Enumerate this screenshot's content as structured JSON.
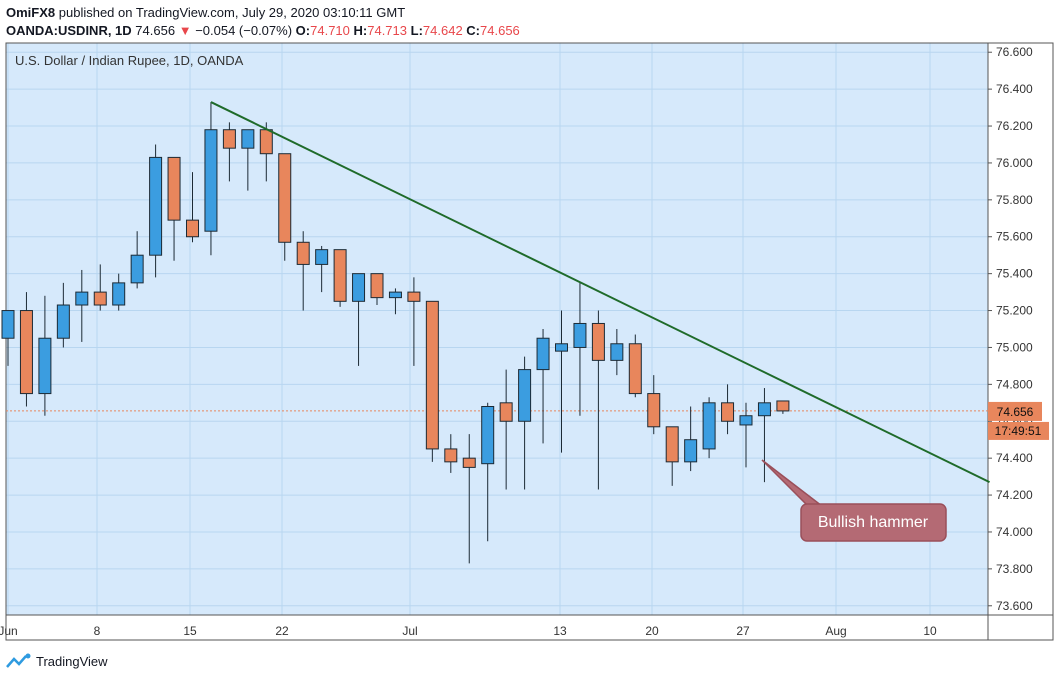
{
  "header": {
    "author": "OmiFX8",
    "published_text": "published on TradingView.com, July 29, 2020 03:10:11 GMT",
    "symbol": "OANDA:USDINR, 1D",
    "last": "74.656",
    "down_arrow": "▼",
    "change": "−0.054 (−0.07%)",
    "o_label": "O:",
    "o_value": "74.710",
    "h_label": "H:",
    "h_value": "74.713",
    "l_label": "L:",
    "l_value": "74.642",
    "c_label": "C:",
    "c_value": "74.656"
  },
  "legend_title": "U.S. Dollar / Indian Rupee, 1D, OANDA",
  "price_tag": "74.656",
  "countdown_tag": "17:49:51",
  "annotation": "Bullish hammer",
  "footer": {
    "brand": "TradingView"
  },
  "colors": {
    "up": "#3b9de0",
    "down": "#e8865c",
    "bg": "#d6e9fb",
    "trend": "#1f6b2a",
    "annotation": "#b46a74"
  },
  "chart_data": {
    "type": "candlestick",
    "ylim": [
      73.55,
      76.65
    ],
    "y_ticks": [
      "76.600",
      "76.400",
      "76.200",
      "76.000",
      "75.800",
      "75.600",
      "75.400",
      "75.200",
      "75.000",
      "74.800",
      "74.600",
      "74.400",
      "74.200",
      "74.000",
      "73.800",
      "73.600"
    ],
    "x_ticks": [
      "Jun",
      "8",
      "15",
      "22",
      "Jul",
      "13",
      "20",
      "27",
      "Aug",
      "10"
    ],
    "candles": [
      {
        "x": 0,
        "open": 75.05,
        "high": 75.2,
        "low": 74.9,
        "close": 75.2
      },
      {
        "x": 1,
        "open": 75.2,
        "high": 75.3,
        "low": 74.68,
        "close": 74.75
      },
      {
        "x": 2,
        "open": 74.75,
        "high": 75.28,
        "low": 74.63,
        "close": 75.05
      },
      {
        "x": 3,
        "open": 75.05,
        "high": 75.35,
        "low": 75.0,
        "close": 75.23
      },
      {
        "x": 4,
        "open": 75.23,
        "high": 75.42,
        "low": 75.03,
        "close": 75.3
      },
      {
        "x": 5,
        "open": 75.3,
        "high": 75.45,
        "low": 75.2,
        "close": 75.23
      },
      {
        "x": 6,
        "open": 75.23,
        "high": 75.4,
        "low": 75.2,
        "close": 75.35
      },
      {
        "x": 7,
        "open": 75.35,
        "high": 75.63,
        "low": 75.32,
        "close": 75.5
      },
      {
        "x": 8,
        "open": 75.5,
        "high": 76.1,
        "low": 75.38,
        "close": 76.03
      },
      {
        "x": 9,
        "open": 76.03,
        "high": 76.03,
        "low": 75.47,
        "close": 75.69
      },
      {
        "x": 10,
        "open": 75.69,
        "high": 75.95,
        "low": 75.57,
        "close": 75.6
      },
      {
        "x": 11,
        "open": 75.63,
        "high": 76.33,
        "low": 75.5,
        "close": 76.18
      },
      {
        "x": 12,
        "open": 76.18,
        "high": 76.22,
        "low": 75.9,
        "close": 76.08
      },
      {
        "x": 13,
        "open": 76.08,
        "high": 76.18,
        "low": 75.85,
        "close": 76.18
      },
      {
        "x": 14,
        "open": 76.18,
        "high": 76.22,
        "low": 75.9,
        "close": 76.05
      },
      {
        "x": 15,
        "open": 76.05,
        "high": 76.05,
        "low": 75.47,
        "close": 75.57
      },
      {
        "x": 16,
        "open": 75.57,
        "high": 75.63,
        "low": 75.2,
        "close": 75.45
      },
      {
        "x": 17,
        "open": 75.45,
        "high": 75.55,
        "low": 75.3,
        "close": 75.53
      },
      {
        "x": 18,
        "open": 75.53,
        "high": 75.53,
        "low": 75.22,
        "close": 75.25
      },
      {
        "x": 19,
        "open": 75.25,
        "high": 75.4,
        "low": 74.9,
        "close": 75.4
      },
      {
        "x": 20,
        "open": 75.4,
        "high": 75.4,
        "low": 75.23,
        "close": 75.27
      },
      {
        "x": 21,
        "open": 75.27,
        "high": 75.32,
        "low": 75.18,
        "close": 75.3
      },
      {
        "x": 22,
        "open": 75.3,
        "high": 75.38,
        "low": 74.9,
        "close": 75.25
      },
      {
        "x": 23,
        "open": 75.25,
        "high": 75.25,
        "low": 74.38,
        "close": 74.45
      },
      {
        "x": 24,
        "open": 74.45,
        "high": 74.53,
        "low": 74.32,
        "close": 74.38
      },
      {
        "x": 25,
        "open": 74.4,
        "high": 74.53,
        "low": 73.83,
        "close": 74.35
      },
      {
        "x": 26,
        "open": 74.37,
        "high": 74.7,
        "low": 73.95,
        "close": 74.68
      },
      {
        "x": 27,
        "open": 74.7,
        "high": 74.88,
        "low": 74.23,
        "close": 74.6
      },
      {
        "x": 28,
        "open": 74.6,
        "high": 74.95,
        "low": 74.23,
        "close": 74.88
      },
      {
        "x": 29,
        "open": 74.88,
        "high": 75.1,
        "low": 74.48,
        "close": 75.05
      },
      {
        "x": 30,
        "open": 74.98,
        "high": 75.2,
        "low": 74.43,
        "close": 75.02
      },
      {
        "x": 31,
        "open": 75.0,
        "high": 75.35,
        "low": 74.63,
        "close": 75.13
      },
      {
        "x": 32,
        "open": 75.13,
        "high": 75.2,
        "low": 74.23,
        "close": 74.93
      },
      {
        "x": 33,
        "open": 74.93,
        "high": 75.1,
        "low": 74.85,
        "close": 75.02
      },
      {
        "x": 34,
        "open": 75.02,
        "high": 75.07,
        "low": 74.73,
        "close": 74.75
      },
      {
        "x": 35,
        "open": 74.75,
        "high": 74.85,
        "low": 74.53,
        "close": 74.57
      },
      {
        "x": 36,
        "open": 74.57,
        "high": 74.57,
        "low": 74.25,
        "close": 74.38
      },
      {
        "x": 37,
        "open": 74.38,
        "high": 74.68,
        "low": 74.33,
        "close": 74.5
      },
      {
        "x": 38,
        "open": 74.45,
        "high": 74.73,
        "low": 74.4,
        "close": 74.7
      },
      {
        "x": 39,
        "open": 74.7,
        "high": 74.8,
        "low": 74.53,
        "close": 74.6
      },
      {
        "x": 40,
        "open": 74.58,
        "high": 74.7,
        "low": 74.35,
        "close": 74.63
      },
      {
        "x": 41,
        "open": 74.63,
        "high": 74.78,
        "low": 74.27,
        "close": 74.7
      },
      {
        "x": 42,
        "open": 74.71,
        "high": 74.71,
        "low": 74.64,
        "close": 74.656
      }
    ],
    "trendline": {
      "x1": 11,
      "y1": 76.33,
      "x2": 53.2,
      "y2": 74.27
    },
    "last_value": 74.656
  }
}
